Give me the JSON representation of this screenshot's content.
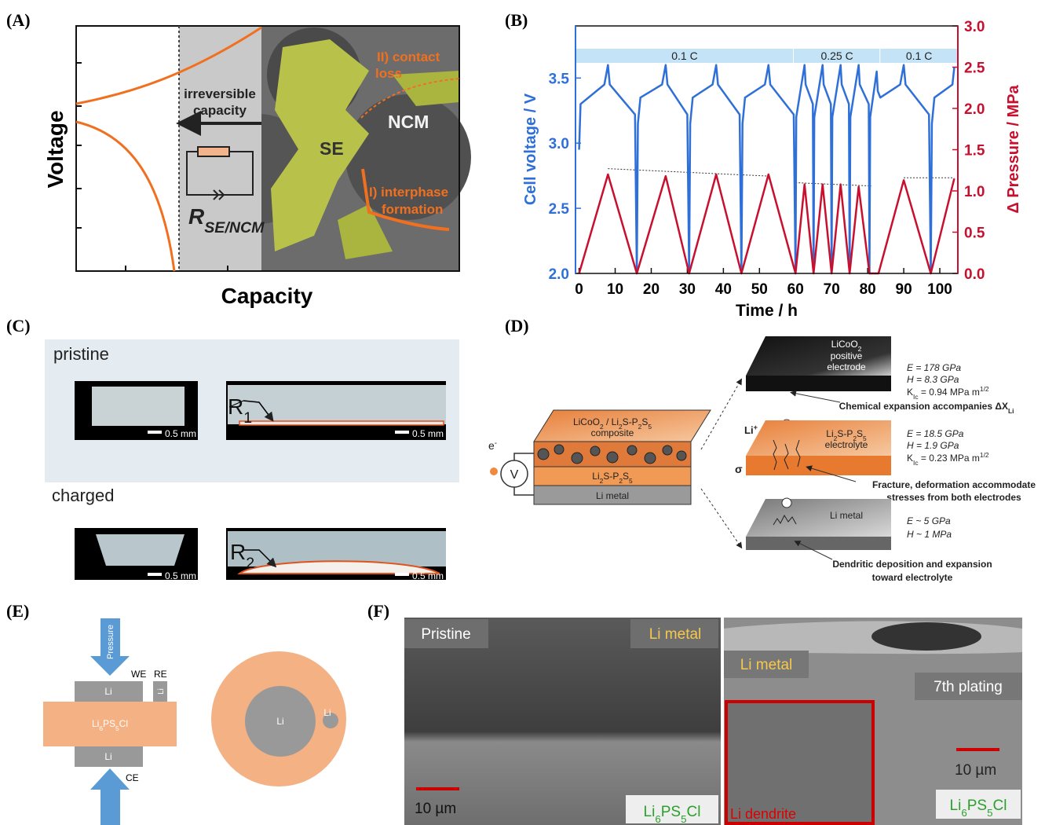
{
  "panel_labels": [
    "(A)",
    "(B)",
    "(C)",
    "(D)",
    "(E)",
    "(F)"
  ],
  "panel_a": {
    "y_label": "Voltage",
    "x_label": "Capacity",
    "contact_loss": [
      "II) contact",
      "loss"
    ],
    "irreversible": [
      "irreversible",
      "capacity"
    ],
    "ncm": "NCM",
    "se": "SE",
    "interphase": [
      "I) interphase",
      "formation"
    ],
    "resistance": [
      "R",
      "SE/NCM"
    ]
  },
  "chart_data": {
    "type": "line",
    "x_label": "Time / h",
    "y_label": "Cell voltage / V",
    "y2_label": "Δ Pressure / MPa",
    "xlim": [
      -1,
      105
    ],
    "xticks": [
      0,
      10,
      20,
      30,
      40,
      50,
      60,
      70,
      80,
      90,
      100
    ],
    "ylim": [
      2.0,
      3.9
    ],
    "yticks": [
      {
        "value": 2.0,
        "label": "2.0"
      },
      2.5,
      {
        "value": 3.0,
        "label": "3.0"
      },
      3.5
    ],
    "y2lim": [
      0,
      3
    ],
    "y2ticks": [
      {
        "value": 0,
        "label": "0.0"
      },
      0.5,
      {
        "value": 1,
        "label": "1.0"
      },
      1.5,
      {
        "value": 2,
        "label": "2.0"
      },
      2.5,
      {
        "value": 3,
        "label": "3.0"
      }
    ],
    "series": [
      {
        "color": "#2f6fd8",
        "axis": "y",
        "x": [
          0,
          0.4,
          7,
          8,
          8.5,
          15.5,
          16,
          16.3,
          17,
          23,
          24,
          24.5,
          30,
          30.5,
          30.8,
          31.5,
          37,
          38,
          38.5,
          44.5,
          45,
          45.3,
          46,
          51.5,
          52.5,
          53,
          59.5,
          60,
          60.2,
          62.5,
          62.8,
          64.8,
          65,
          65.2,
          67.5,
          67.8,
          69.8,
          70,
          70.2,
          72.5,
          72.8,
          74.8,
          75,
          75.2,
          77.5,
          77.8,
          80.3,
          80.5,
          80.7,
          82.5,
          82.8,
          83.5,
          89,
          90,
          90.5,
          97,
          97.5,
          97.8,
          98.5,
          103.5,
          104
        ],
        "values": [
          2.95,
          3.3,
          3.45,
          3.6,
          3.45,
          3.22,
          2.0,
          3.15,
          3.35,
          3.45,
          3.6,
          3.45,
          3.22,
          2.0,
          3.15,
          3.35,
          3.45,
          3.6,
          3.45,
          3.22,
          2.0,
          3.15,
          3.35,
          3.45,
          3.6,
          3.45,
          3.22,
          2.0,
          3.2,
          3.6,
          3.45,
          3.3,
          2.0,
          3.2,
          3.6,
          3.45,
          3.3,
          2.0,
          3.2,
          3.6,
          3.45,
          3.3,
          2.0,
          3.2,
          3.6,
          3.45,
          3.3,
          2.0,
          3.2,
          3.55,
          3.4,
          3.35,
          3.45,
          3.6,
          3.45,
          3.22,
          2.0,
          3.15,
          3.35,
          3.45,
          3.58
        ]
      },
      {
        "color": "#c8102e",
        "axis": "y2",
        "x": [
          0,
          8,
          16,
          24,
          30.5,
          38,
          45,
          52.5,
          60,
          62.5,
          65,
          67.5,
          70,
          72.5,
          75,
          77.5,
          80.5,
          83,
          90,
          97.5,
          104
        ],
        "values": [
          0,
          1.2,
          0,
          1.18,
          0,
          1.2,
          0,
          1.2,
          0,
          1.08,
          0,
          1.08,
          0,
          1.08,
          0,
          1.05,
          0,
          0,
          1.13,
          0,
          1.15
        ]
      }
    ],
    "trend_color": "#333333",
    "trend_lines": [
      {
        "x": [
          8,
          52.5
        ],
        "values": [
          1.27,
          1.18
        ]
      },
      {
        "x": [
          60,
          81
        ],
        "values": [
          1.1,
          1.06
        ]
      },
      {
        "x": [
          90,
          104
        ],
        "values": [
          1.16,
          1.16
        ]
      }
    ],
    "rate_band_color": "#c5e3f6",
    "rate_bands": [
      {
        "label": "0.1 C",
        "start": -1,
        "end": 59.5
      },
      {
        "label": "0.25 C",
        "start": 59.5,
        "end": 83.5
      },
      {
        "label": "0.1 C",
        "start": 83.5,
        "end": 105
      }
    ]
  },
  "panel_c": {
    "pristine": "pristine",
    "charged": "charged",
    "scale_bars": [
      "0.5 mm",
      "0.5 mm",
      "0.5 mm",
      "0.5 mm"
    ],
    "r1": [
      "R",
      "1"
    ],
    "r2": [
      "R",
      "2"
    ]
  },
  "panel_d": {
    "composite": [
      [
        "LiCoO",
        "2",
        " / Li",
        "2",
        "S-P",
        "2",
        "S",
        "5"
      ],
      "composite"
    ],
    "separator": [
      "Li",
      "2",
      "S-P",
      "2",
      "S",
      "5"
    ],
    "li_metal": "Li metal",
    "electron": [
      "e",
      "-"
    ],
    "voltmeter": "V",
    "cathode": [
      [
        "LiCoO",
        "2"
      ],
      "positive",
      "electrode"
    ],
    "cathode_props": [
      "E = 178 GPa",
      "H = 8.3 GPa",
      [
        "K",
        "Ic",
        " = 0.94 MPa m",
        "1/2"
      ]
    ],
    "chemical": [
      "Chemical expansion accompanies ΔX",
      "Li"
    ],
    "li_ion": [
      "Li",
      "+"
    ],
    "electrolyte": [
      [
        "Li",
        "2",
        "S-P",
        "2",
        "S",
        "5"
      ],
      "electrolyte"
    ],
    "electrolyte_props": [
      "E = 18.5 GPa",
      "H = 1.9 GPa",
      [
        "K",
        "Ic",
        " = 0.23 MPa m",
        "1/2"
      ]
    ],
    "sigma": "σ",
    "fracture": [
      "Fracture, deformation accommodate",
      "stresses from both electrodes"
    ],
    "anode": "Li metal",
    "anode_props": [
      "E ~ 5 GPa",
      "H ~ 1 MPa"
    ],
    "dendritic": [
      "Dendritic deposition and expansion",
      "toward electrolyte"
    ]
  },
  "panel_e": {
    "pressure": "Pressure",
    "we": "WE",
    "re": "RE",
    "ce": "CE",
    "li": [
      "Li",
      "Li",
      "Li",
      "Li",
      "Li"
    ],
    "electrolyte": [
      "Li",
      "6",
      "PS",
      "5",
      "Cl"
    ]
  },
  "panel_f": {
    "pristine": "Pristine",
    "li_metal": [
      "Li metal",
      "Li metal"
    ],
    "plating": "7th plating",
    "scale": [
      "10 µm",
      "10 µm"
    ],
    "electrolyte": [
      [
        "Li",
        "6",
        "PS",
        "5",
        "Cl"
      ],
      [
        "Li",
        "6",
        "PS",
        "5",
        "Cl"
      ]
    ],
    "dendrite": "Li dendrite"
  }
}
